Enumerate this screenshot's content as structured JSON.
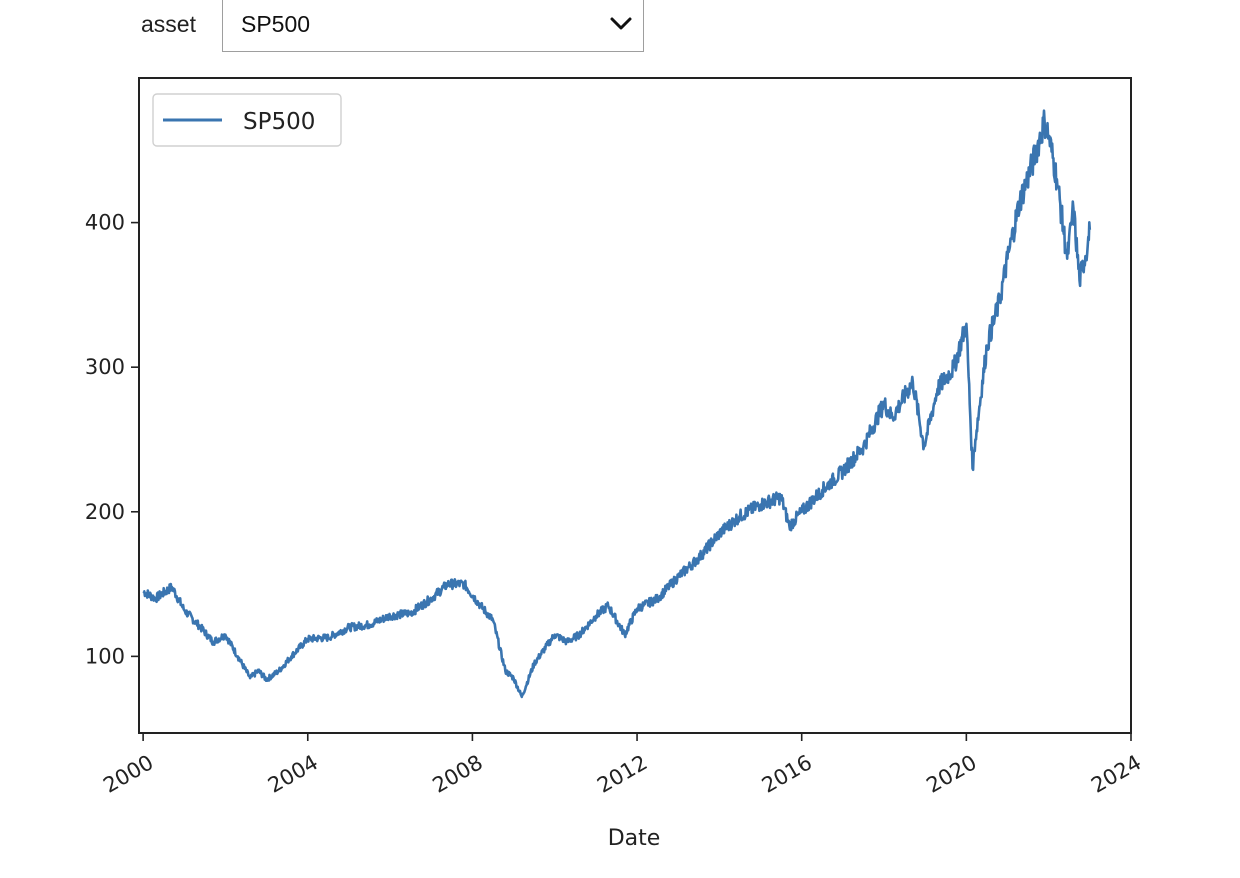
{
  "control": {
    "label": "asset",
    "selected": "SP500",
    "chevron_icon": "chevron-down-icon"
  },
  "chart_data": {
    "type": "line",
    "title": "",
    "xlabel": "Date",
    "ylabel": "",
    "x_tick_labels": [
      "2000",
      "2004",
      "2008",
      "2012",
      "2016",
      "2020",
      "2024"
    ],
    "y_tick_labels": [
      "100",
      "200",
      "300",
      "400"
    ],
    "xlim": [
      1999.9,
      2024.0
    ],
    "ylim": [
      47,
      500
    ],
    "legend": "top-left",
    "grid": false,
    "line_color": "#3a75b0",
    "series": [
      {
        "name": "SP500",
        "x": [
          2000.0,
          2000.3,
          2000.7,
          2001.0,
          2001.4,
          2001.7,
          2002.0,
          2002.3,
          2002.6,
          2002.8,
          2003.0,
          2003.3,
          2003.6,
          2004.0,
          2004.5,
          2005.0,
          2005.5,
          2006.0,
          2006.5,
          2007.0,
          2007.4,
          2007.8,
          2008.2,
          2008.5,
          2008.8,
          2009.0,
          2009.2,
          2009.5,
          2010.0,
          2010.3,
          2010.6,
          2011.0,
          2011.3,
          2011.7,
          2012.0,
          2012.5,
          2013.0,
          2013.5,
          2014.0,
          2014.5,
          2015.0,
          2015.5,
          2015.7,
          2016.0,
          2016.5,
          2017.0,
          2017.5,
          2018.0,
          2018.2,
          2018.7,
          2018.97,
          2019.3,
          2019.7,
          2020.0,
          2020.15,
          2020.22,
          2020.5,
          2020.8,
          2021.0,
          2021.3,
          2021.6,
          2021.9,
          2022.0,
          2022.2,
          2022.45,
          2022.6,
          2022.75,
          2022.95,
          2023.0
        ],
        "y": [
          145,
          140,
          148,
          132,
          120,
          110,
          115,
          100,
          85,
          90,
          84,
          90,
          100,
          112,
          113,
          120,
          122,
          128,
          130,
          140,
          150,
          150,
          135,
          125,
          90,
          85,
          72,
          95,
          115,
          110,
          115,
          128,
          135,
          115,
          133,
          140,
          155,
          168,
          185,
          197,
          205,
          210,
          190,
          200,
          215,
          228,
          245,
          275,
          265,
          290,
          245,
          285,
          300,
          330,
          230,
          250,
          315,
          345,
          375,
          415,
          440,
          470,
          460,
          430,
          375,
          410,
          360,
          385,
          395
        ]
      }
    ]
  }
}
